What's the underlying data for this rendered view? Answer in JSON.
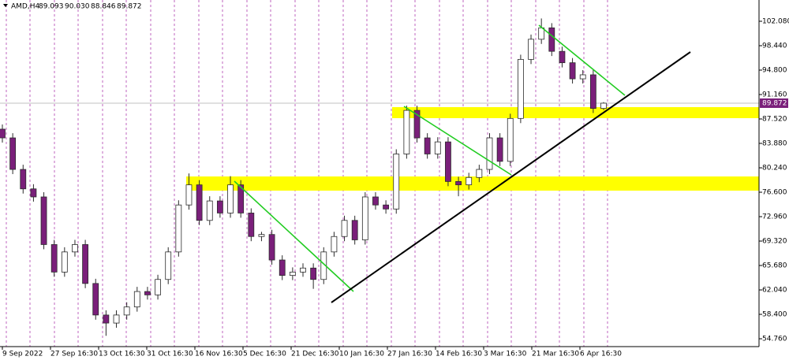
{
  "chart_data": {
    "type": "candlestick",
    "symbol": "AMD,H4",
    "ohlc_text": [
      "89.093",
      "90.030",
      "88.846",
      "89.872"
    ],
    "xlabels": [
      "9 Sep 2022",
      "27 Sep 16:30",
      "13 Oct 16:30",
      "31 Oct 16:30",
      "16 Nov 16:30",
      "5 Dec 16:30",
      "21 Dec 16:30",
      "10 Jan 16:30",
      "27 Jan 16:30",
      "14 Feb 16:30",
      "3 Mar 16:30",
      "21 Mar 16:30",
      "6 Apr 16:30"
    ],
    "candles": [
      [
        86.0,
        86.7,
        84.0,
        84.7
      ],
      [
        84.7,
        85.4,
        79.3,
        80.0
      ],
      [
        80.0,
        80.7,
        76.4,
        77.1
      ],
      [
        77.1,
        77.8,
        75.2,
        75.9
      ],
      [
        75.9,
        76.6,
        68.1,
        68.8
      ],
      [
        68.8,
        69.5,
        64.0,
        64.7
      ],
      [
        64.7,
        68.4,
        64.0,
        67.7
      ],
      [
        67.7,
        69.5,
        67.0,
        68.8
      ],
      [
        68.8,
        69.5,
        62.3,
        63.0
      ],
      [
        63.0,
        63.7,
        57.6,
        58.3
      ],
      [
        58.3,
        59.0,
        55.2,
        57.1
      ],
      [
        57.1,
        59.0,
        56.4,
        58.3
      ],
      [
        58.3,
        60.2,
        57.6,
        59.5
      ],
      [
        59.5,
        62.5,
        58.8,
        61.8
      ],
      [
        61.8,
        62.5,
        60.6,
        61.3
      ],
      [
        61.3,
        64.3,
        60.6,
        63.6
      ],
      [
        63.6,
        68.4,
        62.9,
        67.7
      ],
      [
        67.7,
        75.4,
        67.0,
        74.7
      ],
      [
        74.7,
        79.4,
        74.0,
        77.7
      ],
      [
        77.7,
        78.4,
        71.7,
        72.4
      ],
      [
        72.4,
        76.0,
        71.7,
        75.3
      ],
      [
        75.3,
        76.0,
        72.8,
        73.5
      ],
      [
        73.5,
        79.0,
        72.8,
        77.7
      ],
      [
        77.7,
        78.4,
        72.8,
        73.5
      ],
      [
        73.5,
        74.2,
        69.3,
        70.0
      ],
      [
        70.0,
        70.7,
        69.3,
        70.3
      ],
      [
        70.3,
        71.0,
        65.8,
        66.5
      ],
      [
        66.5,
        67.2,
        63.5,
        64.2
      ],
      [
        64.2,
        65.4,
        63.5,
        64.7
      ],
      [
        64.7,
        66.0,
        64.0,
        65.3
      ],
      [
        65.3,
        66.0,
        62.2,
        63.6
      ],
      [
        63.6,
        68.4,
        62.9,
        67.7
      ],
      [
        67.7,
        70.7,
        67.0,
        70.0
      ],
      [
        70.0,
        73.1,
        69.3,
        72.4
      ],
      [
        72.4,
        73.1,
        68.8,
        69.5
      ],
      [
        69.5,
        76.6,
        68.8,
        75.9
      ],
      [
        75.9,
        76.6,
        74.0,
        74.7
      ],
      [
        74.7,
        75.4,
        73.4,
        74.1
      ],
      [
        74.1,
        83.0,
        73.4,
        82.3
      ],
      [
        82.3,
        89.5,
        81.6,
        88.8
      ],
      [
        88.8,
        89.5,
        84.0,
        84.7
      ],
      [
        84.7,
        85.4,
        81.6,
        82.3
      ],
      [
        82.3,
        84.8,
        81.6,
        84.1
      ],
      [
        84.1,
        84.8,
        77.5,
        78.2
      ],
      [
        78.2,
        78.9,
        76.0,
        77.7
      ],
      [
        77.7,
        79.5,
        77.0,
        78.8
      ],
      [
        78.8,
        80.7,
        78.1,
        80.0
      ],
      [
        80.0,
        85.4,
        79.3,
        84.7
      ],
      [
        84.7,
        85.4,
        80.5,
        81.2
      ],
      [
        81.2,
        88.3,
        80.5,
        87.6
      ],
      [
        87.6,
        97.1,
        86.9,
        96.4
      ],
      [
        96.4,
        100.1,
        95.7,
        99.4
      ],
      [
        99.4,
        102.5,
        98.7,
        101.1
      ],
      [
        101.1,
        101.8,
        96.9,
        97.6
      ],
      [
        97.6,
        98.3,
        95.2,
        95.9
      ],
      [
        95.9,
        96.6,
        92.8,
        93.5
      ],
      [
        93.5,
        94.8,
        92.8,
        94.1
      ],
      [
        94.1,
        94.8,
        88.4,
        89.093
      ],
      [
        89.093,
        90.03,
        88.846,
        89.872
      ]
    ],
    "up_color": "#ffffff",
    "down_color": "#7a1f7a",
    "wick_color": "#2b2b2b",
    "ylim": [
      53.59,
      105.25
    ],
    "yticks": [
      {
        "value": 102.08,
        "label": "102.080"
      },
      {
        "value": 98.44,
        "label": "98.440"
      },
      {
        "value": 94.8,
        "label": "94.800"
      },
      {
        "value": 91.16,
        "label": "91.160"
      },
      {
        "value": 87.52,
        "label": "87.520"
      },
      {
        "value": 83.88,
        "label": "83.880"
      },
      {
        "value": 80.24,
        "label": "80.240"
      },
      {
        "value": 76.6,
        "label": "76.600"
      },
      {
        "value": 72.96,
        "label": "72.960"
      },
      {
        "value": 69.32,
        "label": "69.320"
      },
      {
        "value": 65.68,
        "label": "65.680"
      },
      {
        "value": 62.04,
        "label": "62.040"
      },
      {
        "value": 58.4,
        "label": "58.400"
      },
      {
        "value": 54.76,
        "label": "54.760"
      }
    ],
    "current_price": {
      "value": 89.872,
      "label": "89.872"
    },
    "grid": true
  }
}
